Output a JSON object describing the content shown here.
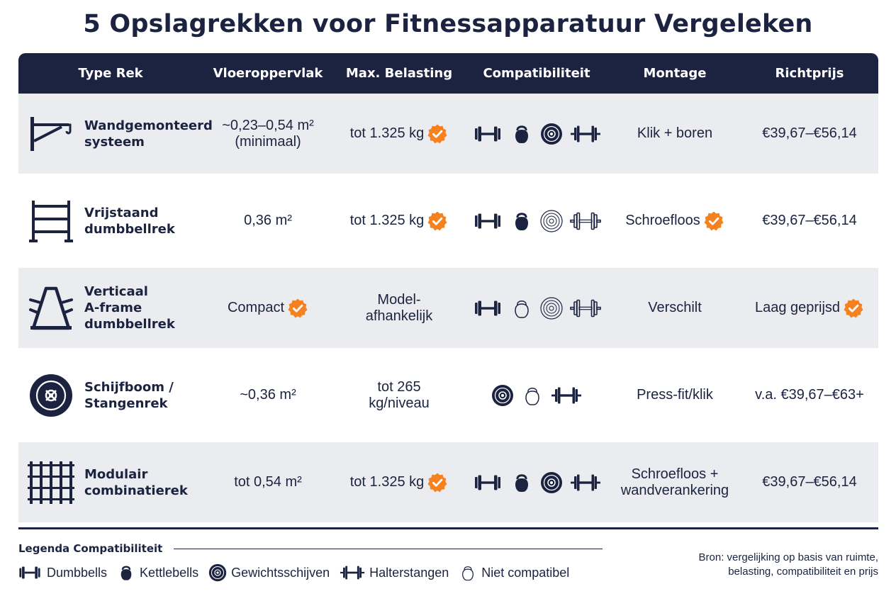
{
  "title": "5 Opslagrekken voor Fitnessapparatuur Vergeleken",
  "chart_data": {
    "type": "table",
    "columns": [
      "Type Rek",
      "Vloeroppervlak",
      "Max. Belasting",
      "Compatibiliteit",
      "Montage",
      "Richtprijs"
    ],
    "rows": [
      {
        "icon": "wall-rack-icon",
        "name": "Wandgemonteerd\nsysteem",
        "floor": "~0,23–0,54 m²\n(minimaal)",
        "floor_check": false,
        "load": "tot 1.325 kg",
        "load_check": true,
        "compat": [
          {
            "item": "dumbbell",
            "ok": true
          },
          {
            "item": "kettlebell",
            "ok": true
          },
          {
            "item": "plate",
            "ok": true
          },
          {
            "item": "barbell",
            "ok": true
          }
        ],
        "mount": "Klik + boren",
        "mount_check": false,
        "price": "€39,67–€56,14",
        "price_check": false
      },
      {
        "icon": "freestanding-rack-icon",
        "name": "Vrijstaand\ndumbbellrek",
        "floor": "0,36 m²",
        "floor_check": false,
        "load": "tot 1.325 kg",
        "load_check": true,
        "compat": [
          {
            "item": "dumbbell",
            "ok": true
          },
          {
            "item": "kettlebell",
            "ok": true
          },
          {
            "item": "plate",
            "ok": false
          },
          {
            "item": "barbell",
            "ok": false
          }
        ],
        "mount": "Schroefloos",
        "mount_check": true,
        "price": "€39,67–€56,14",
        "price_check": false
      },
      {
        "icon": "a-frame-rack-icon",
        "name": "Verticaal\nA-frame\ndumbbellrek",
        "floor": "Compact",
        "floor_check": true,
        "load": "Model-\nafhankelijk",
        "load_check": false,
        "compat": [
          {
            "item": "dumbbell",
            "ok": true
          },
          {
            "item": "kettlebell",
            "ok": false
          },
          {
            "item": "plate",
            "ok": false
          },
          {
            "item": "barbell",
            "ok": false
          }
        ],
        "mount": "Verschilt",
        "mount_check": false,
        "price": "Laag geprijsd",
        "price_check": true
      },
      {
        "icon": "plate-tree-icon",
        "name": "Schijfboom /\nStangenrek",
        "floor": "~0,36 m²",
        "floor_check": false,
        "load": "tot 265\nkg/niveau",
        "load_check": false,
        "compat": [
          {
            "item": "plate",
            "ok": true
          },
          {
            "item": "kettlebell",
            "ok": false
          },
          {
            "item": "barbell",
            "ok": true
          }
        ],
        "mount": "Press-fit/klik",
        "mount_check": false,
        "price": "v.a. €39,67–€63+",
        "price_check": false
      },
      {
        "icon": "modular-rack-icon",
        "name": "Modulair\ncombinatierek",
        "floor": "tot 0,54 m²",
        "floor_check": false,
        "load": "tot 1.325 kg",
        "load_check": true,
        "compat": [
          {
            "item": "dumbbell",
            "ok": true
          },
          {
            "item": "kettlebell",
            "ok": true
          },
          {
            "item": "plate",
            "ok": true
          },
          {
            "item": "barbell",
            "ok": true
          }
        ],
        "mount": "Schroefloos +\nwandverankering",
        "mount_check": false,
        "price": "€39,67–€56,14",
        "price_check": false
      }
    ]
  },
  "legend": {
    "title": "Legenda Compatibiliteit",
    "items": [
      {
        "icon": "dumbbell",
        "label": "Dumbbells"
      },
      {
        "icon": "kettlebell",
        "label": "Kettlebells"
      },
      {
        "icon": "plate",
        "label": "Gewichtsschijven"
      },
      {
        "icon": "barbell",
        "label": "Halterstangen"
      },
      {
        "icon": "not-compatible",
        "label": "Niet compatibel"
      }
    ]
  },
  "source": "Bron: vergelijking op basis van ruimte,\nbelasting, compatibiliteit en prijs",
  "colors": {
    "navy": "#1b2340",
    "row_shade": "#ebecf0",
    "check": "#f5821f",
    "white": "#ffffff"
  }
}
